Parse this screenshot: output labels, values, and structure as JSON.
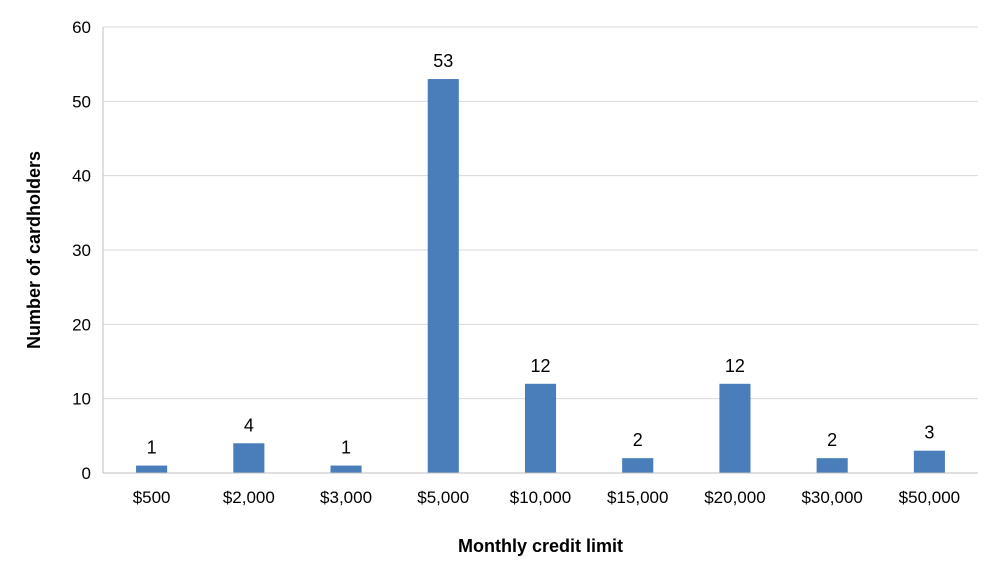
{
  "chart_data": {
    "type": "bar",
    "categories": [
      "$500",
      "$2,000",
      "$3,000",
      "$5,000",
      "$10,000",
      "$15,000",
      "$20,000",
      "$30,000",
      "$50,000"
    ],
    "values": [
      1,
      4,
      1,
      53,
      12,
      2,
      12,
      2,
      3
    ],
    "data_labels": [
      "1",
      "4",
      "1",
      "53",
      "12",
      "2",
      "12",
      "2",
      "3"
    ],
    "xlabel": "Monthly credit limit",
    "ylabel": "Number of cardholders",
    "ylim": [
      0,
      60
    ],
    "yticks": [
      0,
      10,
      20,
      30,
      40,
      50,
      60
    ],
    "grid": true,
    "legend": "none",
    "colors": {
      "bar": "#4a7ebb",
      "grid": "#d9d9d9",
      "axis": "#bfbfbf",
      "text": "#000000"
    }
  }
}
